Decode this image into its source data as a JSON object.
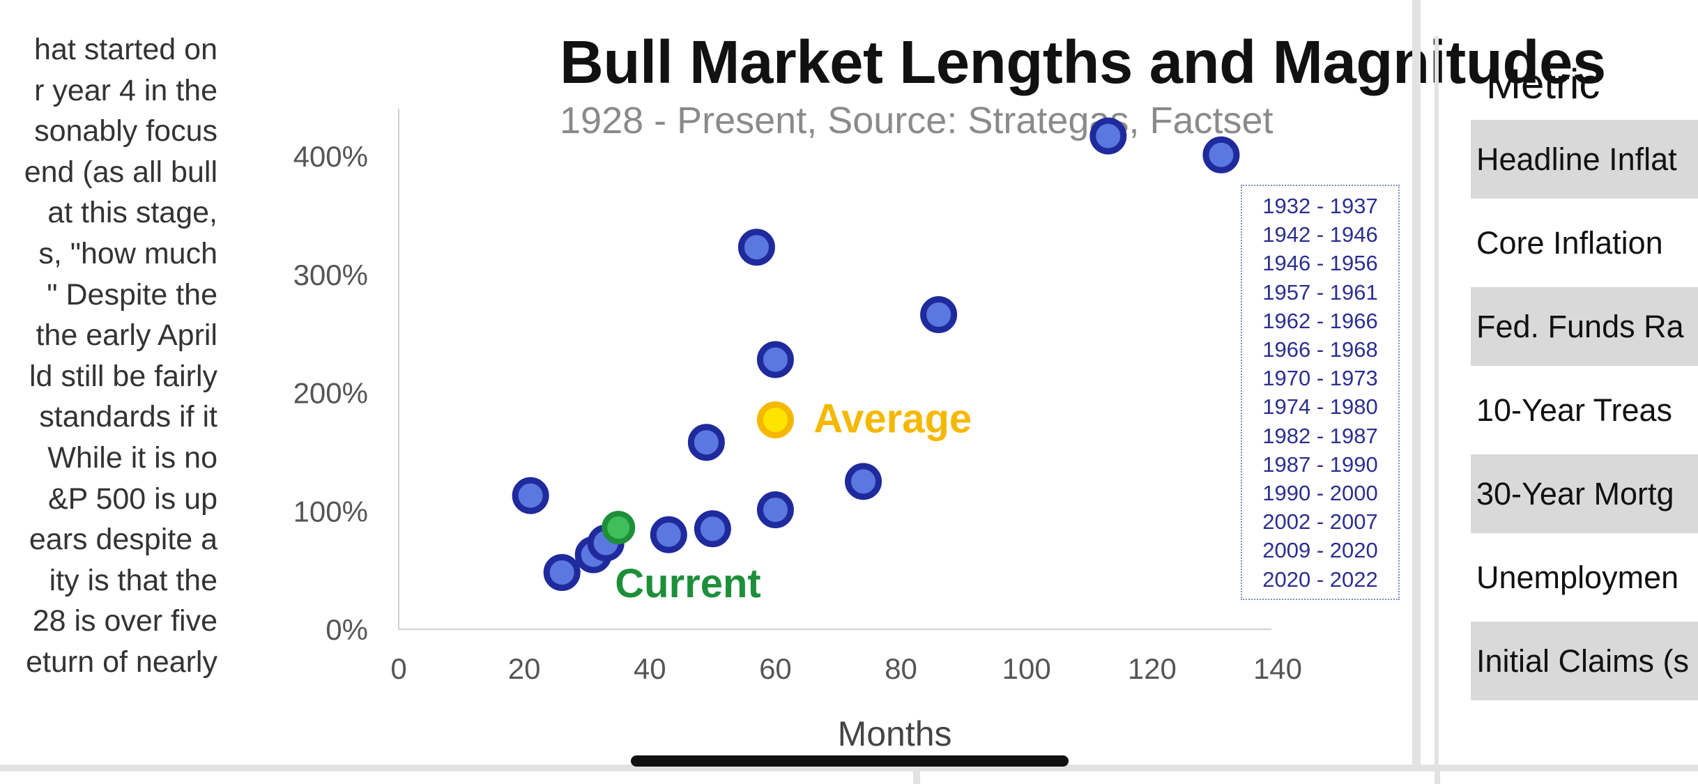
{
  "left_text": {
    "lines": [
      "hat started on",
      "r year 4 in the",
      "sonably focus",
      "end (as all bull",
      "at this stage,",
      "s, \"how much",
      "\" Despite the",
      "the early April",
      "ld still be fairly",
      "standards if it",
      "While it is no",
      "&P 500 is up",
      "ears despite a",
      "ity is that the",
      "28 is over five",
      "eturn of nearly"
    ]
  },
  "chart_data": {
    "type": "scatter",
    "title": "Bull Market Lengths and Magnitudes",
    "subtitle": "1928 - Present, Source: Strategas, Factset",
    "xlabel": "Months",
    "ylabel": "",
    "xlim": [
      0,
      140
    ],
    "ylim": [
      0,
      400
    ],
    "x_ticks": [
      0,
      20,
      40,
      60,
      80,
      100,
      120,
      140
    ],
    "y_ticks": [
      0,
      100,
      200,
      300,
      400
    ],
    "y_tick_labels": [
      "0%",
      "100%",
      "200%",
      "300%",
      "400%"
    ],
    "grid": false,
    "legend_position": "right",
    "legend_entries": [
      "1932 - 1937",
      "1942 - 1946",
      "1946 - 1956",
      "1957 - 1961",
      "1962 - 1966",
      "1966 - 1968",
      "1970 - 1973",
      "1974 - 1980",
      "1982 - 1987",
      "1987 - 1990",
      "1990 - 2000",
      "2002 - 2007",
      "2009 - 2020",
      "2020 - 2022"
    ],
    "points": [
      {
        "x": 21,
        "y": 113
      },
      {
        "x": 26,
        "y": 48
      },
      {
        "x": 31,
        "y": 63
      },
      {
        "x": 33,
        "y": 73
      },
      {
        "x": 43,
        "y": 80
      },
      {
        "x": 50,
        "y": 85
      },
      {
        "x": 49,
        "y": 158
      },
      {
        "x": 57,
        "y": 323
      },
      {
        "x": 60,
        "y": 228
      },
      {
        "x": 60,
        "y": 101
      },
      {
        "x": 74,
        "y": 125
      },
      {
        "x": 86,
        "y": 266
      },
      {
        "x": 113,
        "y": 417
      },
      {
        "x": 131,
        "y": 401
      }
    ],
    "average_point": {
      "x": 60,
      "y": 177,
      "label": "Average"
    },
    "current_point": {
      "x": 35,
      "y": 86,
      "label": "Current"
    },
    "colors": {
      "point_fill": "#5b78e0",
      "point_stroke": "#1f2a9c",
      "average_fill": "#ffe400",
      "average_stroke": "#f5b800",
      "average_label": "#f5b800",
      "current_fill": "#3fbf5a",
      "current_stroke": "#1d8f3a",
      "current_label": "#1d8f3a",
      "axis": "#d0d0d0",
      "tick_label": "#555555",
      "legend_text": "#2b2f8f"
    }
  },
  "metric_panel": {
    "header": "Metric",
    "rows": [
      {
        "label": "Headline Inflat"
      },
      {
        "label": "Core Inflation"
      },
      {
        "label": "Fed. Funds Ra"
      },
      {
        "label": "10-Year Treas"
      },
      {
        "label": "30-Year Mortg"
      },
      {
        "label": "Unemploymen"
      },
      {
        "label": "Initial Claims (s"
      }
    ]
  }
}
